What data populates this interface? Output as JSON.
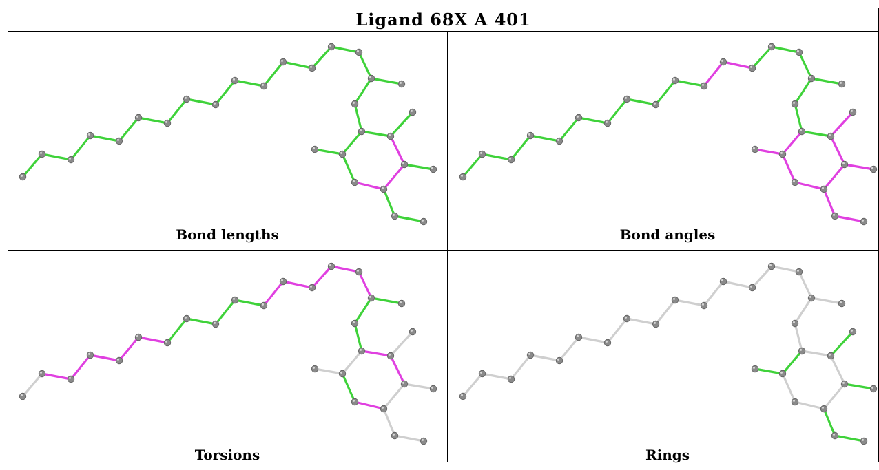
{
  "title": "Ligand 68X A 401",
  "panels": [
    {
      "label": "Bond lengths",
      "bond_colors": [
        "green",
        "green",
        "green",
        "green",
        "green",
        "green",
        "green",
        "green",
        "green",
        "green",
        "green",
        "green",
        "green",
        "green",
        "green",
        "green",
        "green",
        "green",
        "green",
        "magenta",
        "magenta",
        "magenta",
        "green",
        "green",
        "green",
        "green",
        "green",
        "green",
        "green",
        "green",
        "green",
        "green",
        "green"
      ]
    },
    {
      "label": "Bond angles",
      "bond_colors": [
        "green",
        "green",
        "green",
        "green",
        "green",
        "green",
        "green",
        "green",
        "green",
        "green",
        "magenta",
        "magenta",
        "green",
        "green",
        "green",
        "green",
        "green",
        "green",
        "green",
        "magenta",
        "magenta",
        "magenta",
        "magenta",
        "magenta",
        "magenta",
        "magenta",
        "magenta",
        "magenta",
        "magenta",
        "green",
        "green",
        "green",
        "magenta"
      ]
    },
    {
      "label": "Torsions",
      "bond_colors": [
        "gray",
        "magenta",
        "magenta",
        "magenta",
        "magenta",
        "magenta",
        "green",
        "green",
        "green",
        "green",
        "magenta",
        "magenta",
        "magenta",
        "magenta",
        "magenta",
        "green",
        "green",
        "green",
        "magenta",
        "magenta",
        "gray",
        "magenta",
        "green",
        "gray",
        "gray",
        "gray",
        "gray",
        "gray",
        "gray",
        "gray",
        "gray",
        "gray",
        "green"
      ]
    },
    {
      "label": "Rings",
      "bond_colors": [
        "gray",
        "gray",
        "gray",
        "gray",
        "gray",
        "gray",
        "gray",
        "gray",
        "gray",
        "gray",
        "gray",
        "gray",
        "gray",
        "gray",
        "gray",
        "gray",
        "gray",
        "gray",
        "gray",
        "gray",
        "gray",
        "gray",
        "gray",
        "green",
        "green",
        "green",
        "green",
        "green",
        "green",
        "gray",
        "gray",
        "gray",
        "gray"
      ]
    }
  ],
  "colors": {
    "green": "#3fd23a",
    "magenta": "#e040e0",
    "gray": "#cfcfcf",
    "atom": "#8a8a8a"
  }
}
